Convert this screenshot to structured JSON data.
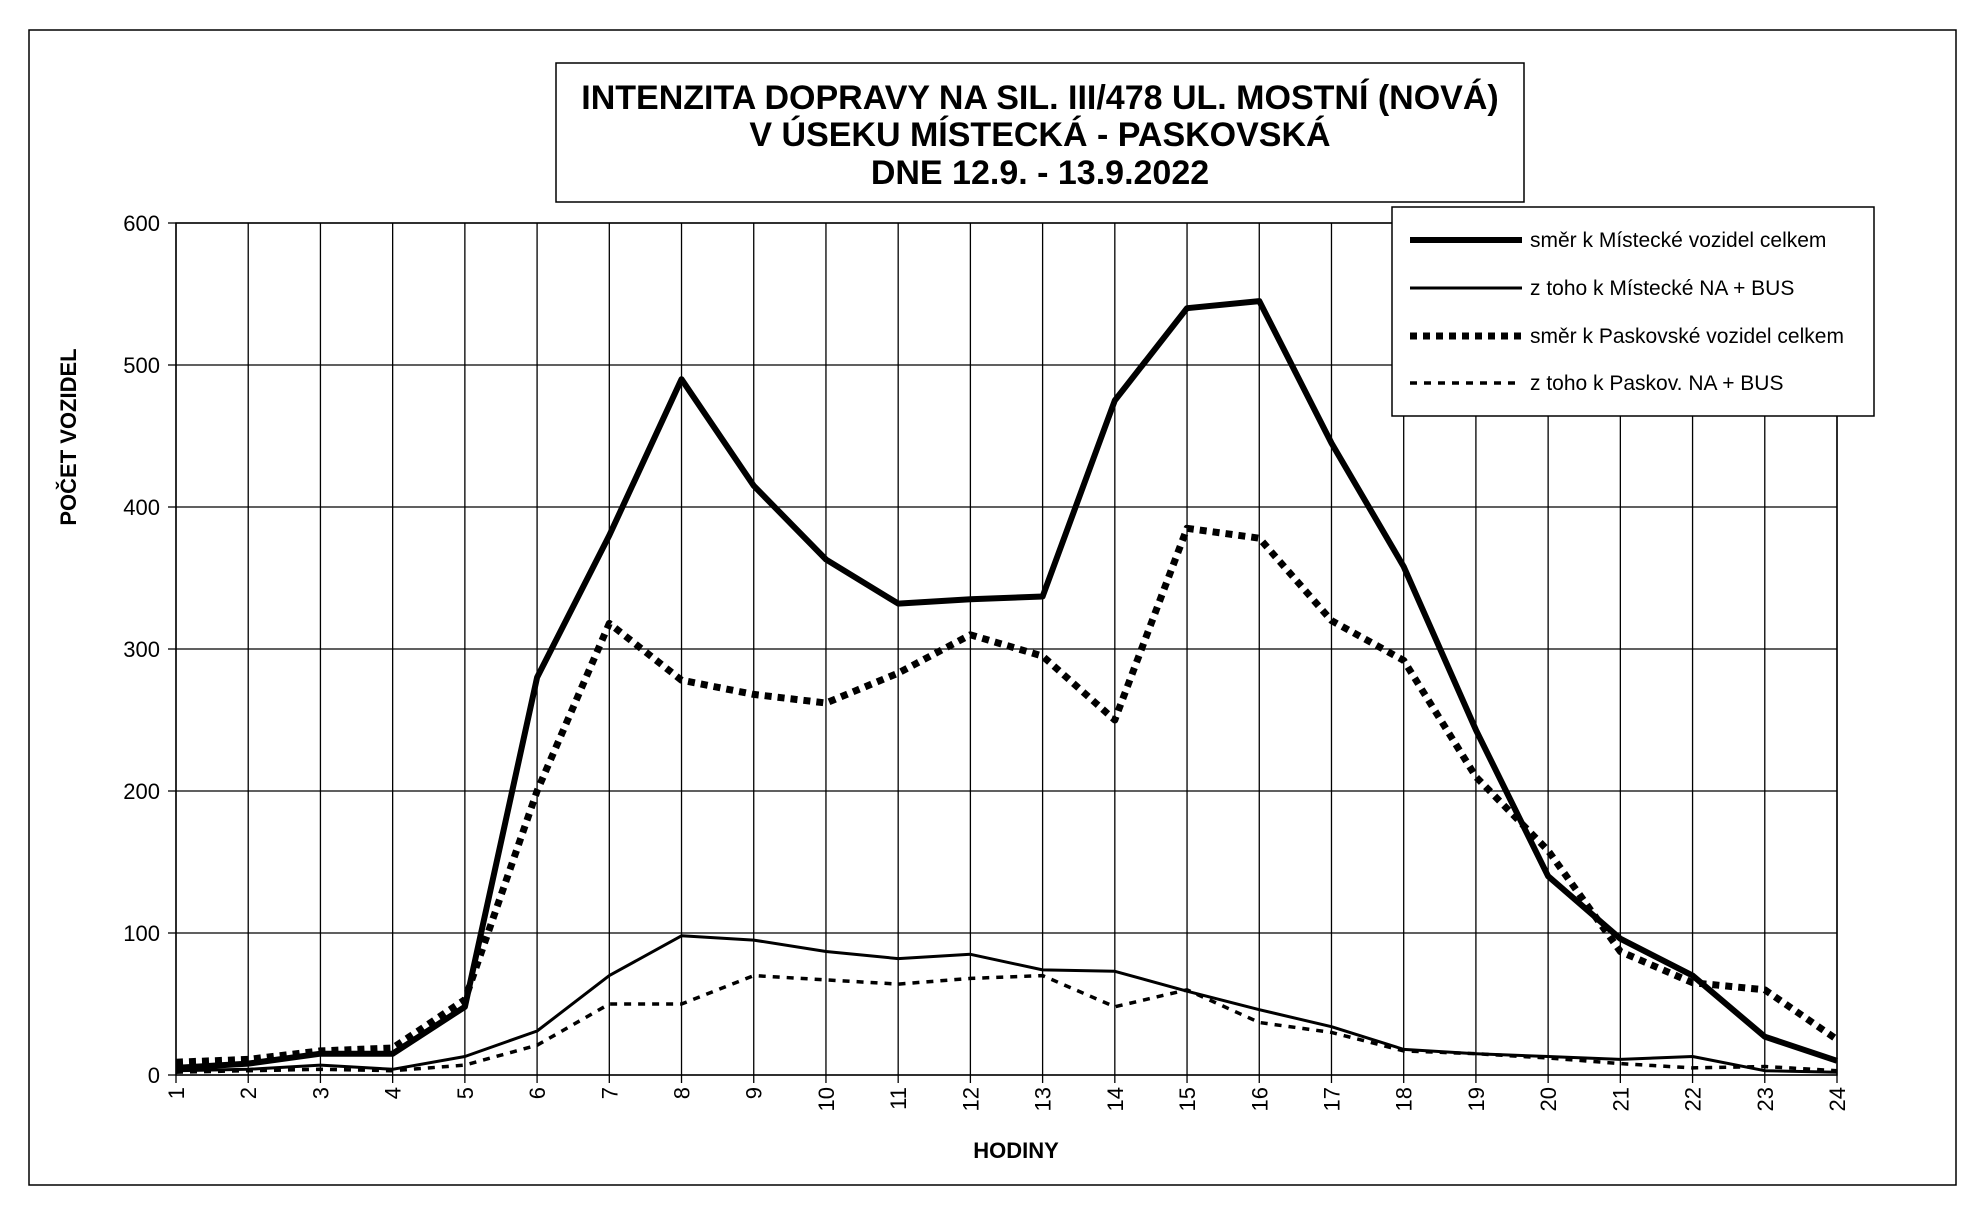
{
  "chart_data": {
    "type": "line",
    "title": [
      "INTENZITA DOPRAVY NA SIL. III/478 UL. MOSTNÍ (NOVÁ)",
      "V ÚSEKU MÍSTECKÁ - PASKOVSKÁ",
      "DNE 12.9. - 13.9.2022"
    ],
    "xlabel": "HODINY",
    "ylabel": "POČET VOZIDEL",
    "ylim": [
      0,
      600
    ],
    "yticks": [
      0,
      100,
      200,
      300,
      400,
      500,
      600
    ],
    "categories": [
      "1",
      "2",
      "3",
      "4",
      "5",
      "6",
      "7",
      "8",
      "9",
      "10",
      "11",
      "12",
      "13",
      "14",
      "15",
      "16",
      "17",
      "18",
      "19",
      "20",
      "21",
      "22",
      "23",
      "24"
    ],
    "grid": true,
    "legend_position": "top-right",
    "series": [
      {
        "name": "směr k Místecké vozidel celkem",
        "style": "thick-solid",
        "color": "#000000",
        "values": [
          5,
          8,
          15,
          15,
          48,
          280,
          380,
          490,
          415,
          363,
          332,
          335,
          337,
          475,
          540,
          545,
          445,
          358,
          243,
          140,
          96,
          70,
          27,
          10
        ]
      },
      {
        "name": "z toho k Místecké NA + BUS",
        "style": "thin-solid",
        "color": "#000000",
        "values": [
          3,
          4,
          7,
          4,
          13,
          31,
          70,
          98,
          95,
          87,
          82,
          85,
          74,
          73,
          59,
          46,
          34,
          18,
          15,
          13,
          11,
          13,
          3,
          2
        ]
      },
      {
        "name": "směr k Paskovské vozidel celkem",
        "style": "thick-dotted",
        "color": "#000000",
        "values": [
          9,
          11,
          17,
          19,
          53,
          200,
          318,
          278,
          268,
          262,
          283,
          310,
          295,
          250,
          385,
          378,
          320,
          292,
          210,
          158,
          87,
          65,
          60,
          25
        ]
      },
      {
        "name": "z toho k Paskov. NA + BUS",
        "style": "thin-dotted",
        "color": "#000000",
        "values": [
          2,
          3,
          4,
          3,
          7,
          21,
          50,
          50,
          70,
          67,
          64,
          68,
          70,
          48,
          60,
          37,
          30,
          17,
          15,
          12,
          8,
          5,
          6,
          3
        ]
      }
    ]
  }
}
